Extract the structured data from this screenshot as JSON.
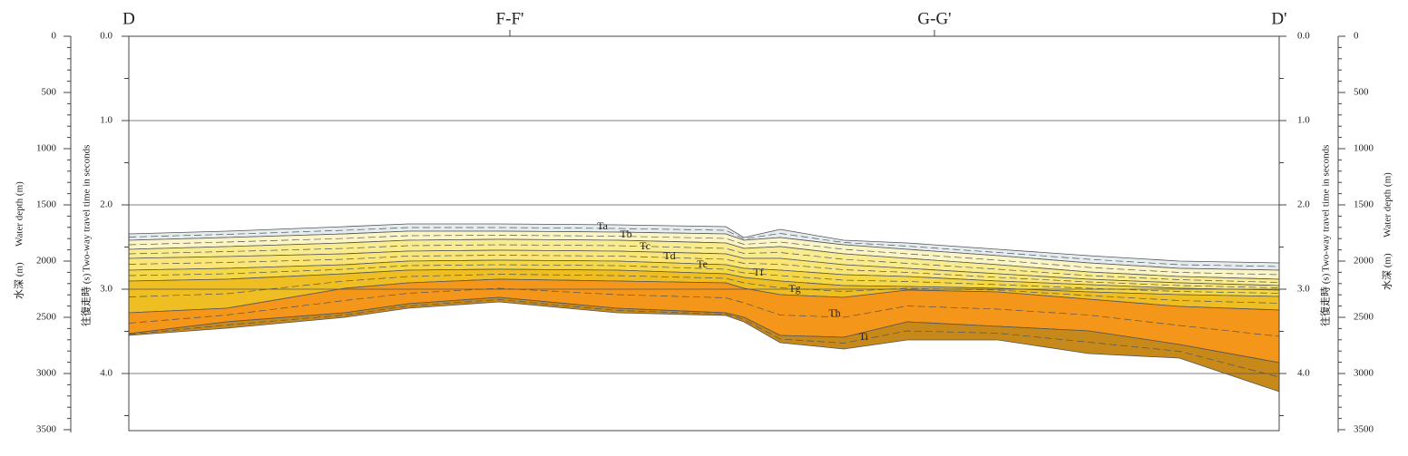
{
  "sections": [
    "D",
    "F-F'",
    "G-G'",
    "D'"
  ],
  "axes": {
    "depth_title_ja": "水深 (m)",
    "depth_title_en": "Water depth (m)",
    "time_title_ja": "往復走時 (s)",
    "time_title_en": "Two-way travel time in seconds",
    "depth_ticks": [
      "0",
      "500",
      "1000",
      "1500",
      "2000",
      "2500",
      "3000",
      "3500"
    ],
    "time_ticks": [
      "0.0",
      "1.0",
      "2.0",
      "3.0",
      "4.0"
    ]
  },
  "layers": [
    "Ta",
    "Tb",
    "Tc",
    "Td",
    "Te",
    "Tf",
    "Tg",
    "Th",
    "Ti"
  ]
}
